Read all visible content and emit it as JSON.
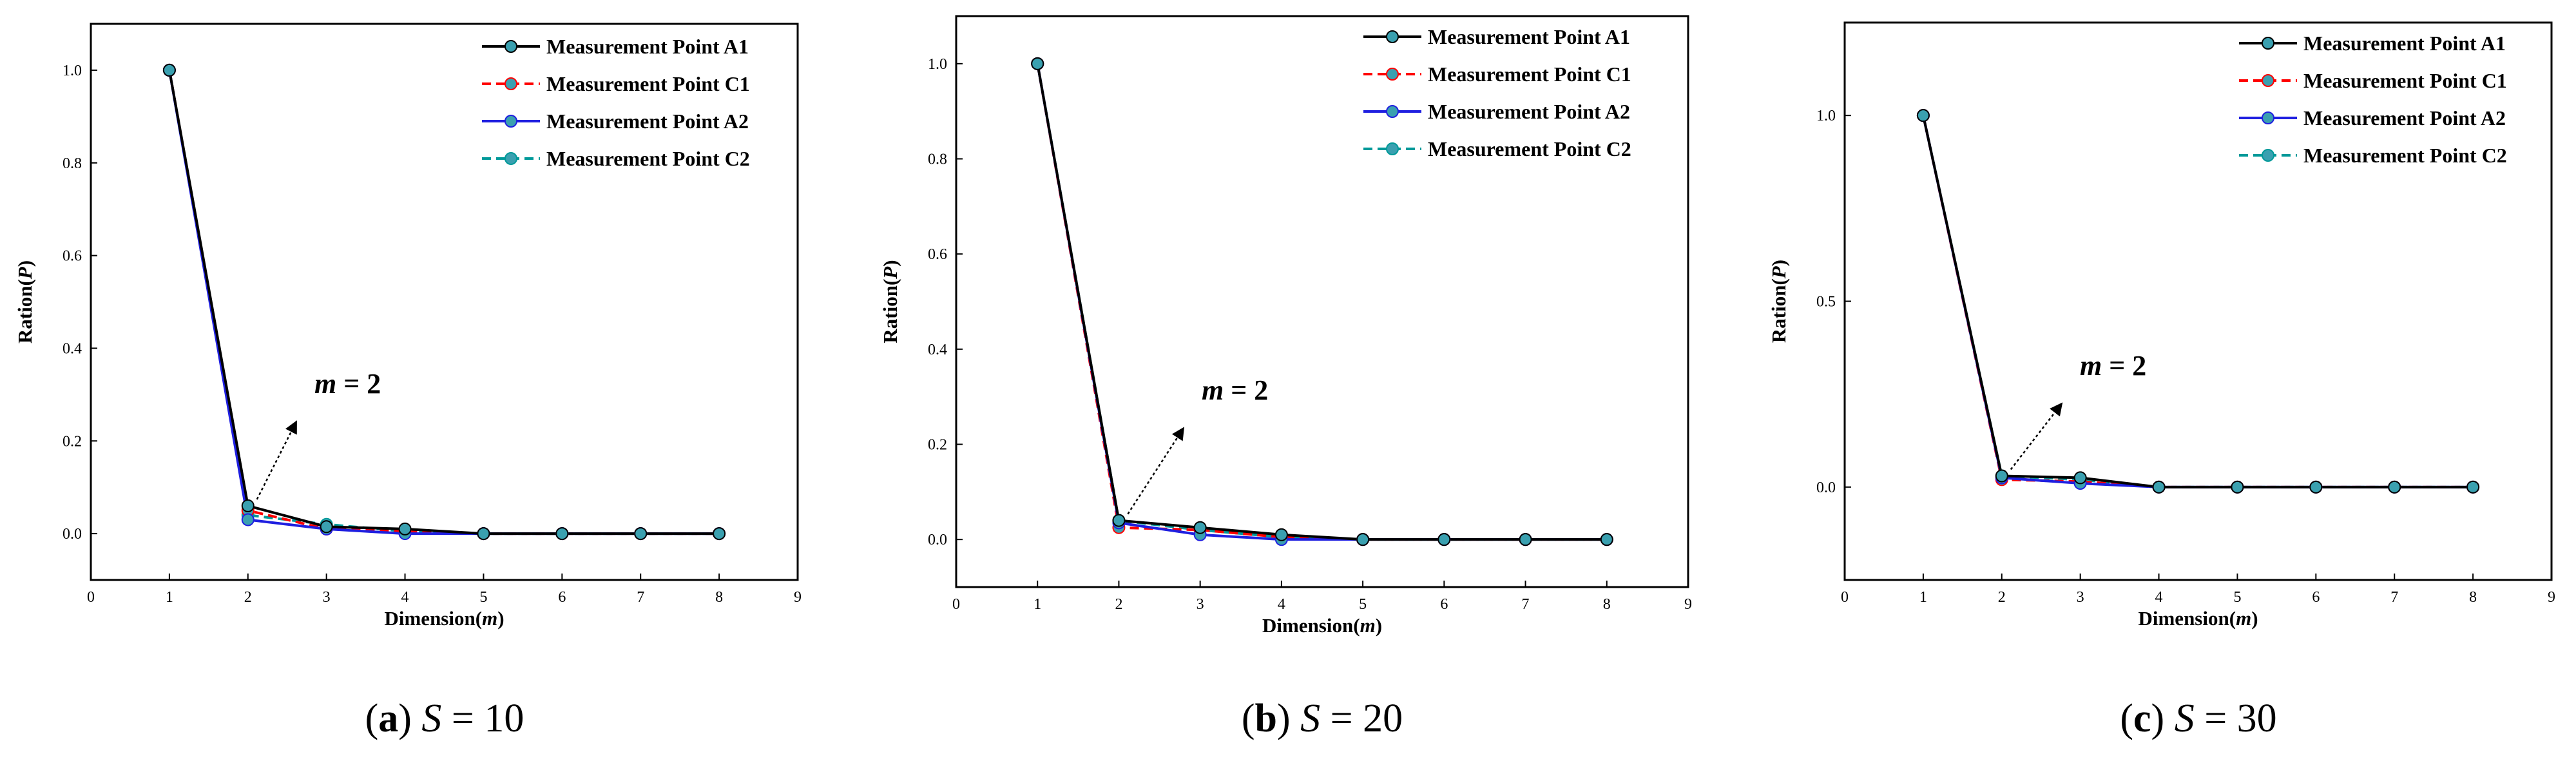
{
  "colors": {
    "Measurement Point A1": "#000000",
    "Measurement Point C1": "#ff0000",
    "Measurement Point A2": "#1f1fe0",
    "Measurement Point C2": "#009999",
    "marker_fill": "#3aa0b0"
  },
  "chart_data": [
    {
      "type": "line",
      "caption_letter": "(a)",
      "caption_var": "S",
      "caption_value": "= 10",
      "xlabel": "Dimension(m)",
      "ylabel": "Ration(P)",
      "xlim": [
        0,
        9
      ],
      "ylim": [
        -0.1,
        1.1
      ],
      "xticks": [
        0,
        1,
        2,
        3,
        4,
        5,
        6,
        7,
        8,
        9
      ],
      "yticks": [
        0.0,
        0.2,
        0.4,
        0.6,
        0.8,
        1.0
      ],
      "ytick_labels": [
        "0.0",
        "0.2",
        "0.4",
        "0.6",
        "0.8",
        "1.0"
      ],
      "legend_position": "top-right",
      "annotation": "m = 2",
      "x": [
        1,
        2,
        3,
        4,
        5,
        6,
        7,
        8
      ],
      "series": [
        {
          "name": "Measurement Point A1",
          "style": "solid",
          "values": [
            1.0,
            0.06,
            0.015,
            0.01,
            0.0,
            0.0,
            0.0,
            0.0
          ]
        },
        {
          "name": "Measurement Point C1",
          "style": "dashed",
          "values": [
            1.0,
            0.05,
            0.01,
            0.005,
            0.0,
            0.0,
            0.0,
            0.0
          ]
        },
        {
          "name": "Measurement Point A2",
          "style": "solid",
          "values": [
            1.0,
            0.03,
            0.01,
            0.0,
            0.0,
            0.0,
            0.0,
            0.0
          ]
        },
        {
          "name": "Measurement Point C2",
          "style": "dashed",
          "values": [
            1.0,
            0.04,
            0.02,
            0.005,
            0.0,
            0.0,
            0.0,
            0.0
          ]
        }
      ]
    },
    {
      "type": "line",
      "caption_letter": "(b)",
      "caption_var": "S",
      "caption_value": "= 20",
      "xlabel": "Dimension(m)",
      "ylabel": "Ration(P)",
      "xlim": [
        0,
        9
      ],
      "ylim": [
        -0.1,
        1.1
      ],
      "xticks": [
        0,
        1,
        2,
        3,
        4,
        5,
        6,
        7,
        8,
        9
      ],
      "yticks": [
        0.0,
        0.2,
        0.4,
        0.6,
        0.8,
        1.0
      ],
      "ytick_labels": [
        "0.0",
        "0.2",
        "0.4",
        "0.6",
        "0.8",
        "1.0"
      ],
      "legend_position": "top-right",
      "annotation": "m = 2",
      "x": [
        1,
        2,
        3,
        4,
        5,
        6,
        7,
        8
      ],
      "series": [
        {
          "name": "Measurement Point A1",
          "style": "solid",
          "values": [
            1.0,
            0.04,
            0.025,
            0.01,
            0.0,
            0.0,
            0.0,
            0.0
          ]
        },
        {
          "name": "Measurement Point C1",
          "style": "dashed",
          "values": [
            1.0,
            0.025,
            0.02,
            0.005,
            0.0,
            0.0,
            0.0,
            0.0
          ]
        },
        {
          "name": "Measurement Point A2",
          "style": "solid",
          "values": [
            1.0,
            0.035,
            0.01,
            0.0,
            0.0,
            0.0,
            0.0,
            0.0
          ]
        },
        {
          "name": "Measurement Point C2",
          "style": "dashed",
          "values": [
            1.0,
            0.04,
            0.02,
            0.005,
            0.0,
            0.0,
            0.0,
            0.0
          ]
        }
      ]
    },
    {
      "type": "line",
      "caption_letter": "(c)",
      "caption_var": "S",
      "caption_value": "= 30",
      "xlabel": "Dimension(m)",
      "ylabel": "Ration(P)",
      "xlim": [
        0,
        9
      ],
      "ylim": [
        -0.25,
        1.25
      ],
      "xticks": [
        0,
        1,
        2,
        3,
        4,
        5,
        6,
        7,
        8,
        9
      ],
      "yticks": [
        0.0,
        0.5,
        1.0
      ],
      "ytick_labels": [
        "0.0",
        "0.5",
        "1.0"
      ],
      "legend_position": "top-right",
      "annotation": "m = 2",
      "x": [
        1,
        2,
        3,
        4,
        5,
        6,
        7,
        8
      ],
      "series": [
        {
          "name": "Measurement Point A1",
          "style": "solid",
          "values": [
            1.0,
            0.03,
            0.025,
            0.0,
            0.0,
            0.0,
            0.0,
            0.0
          ]
        },
        {
          "name": "Measurement Point C1",
          "style": "dashed",
          "values": [
            1.0,
            0.02,
            0.015,
            0.0,
            0.0,
            0.0,
            0.0,
            0.0
          ]
        },
        {
          "name": "Measurement Point A2",
          "style": "solid",
          "values": [
            1.0,
            0.025,
            0.01,
            0.0,
            0.0,
            0.0,
            0.0,
            0.0
          ]
        },
        {
          "name": "Measurement Point C2",
          "style": "dashed",
          "values": [
            1.0,
            0.03,
            0.02,
            0.0,
            0.0,
            0.0,
            0.0,
            0.0
          ]
        }
      ]
    }
  ]
}
